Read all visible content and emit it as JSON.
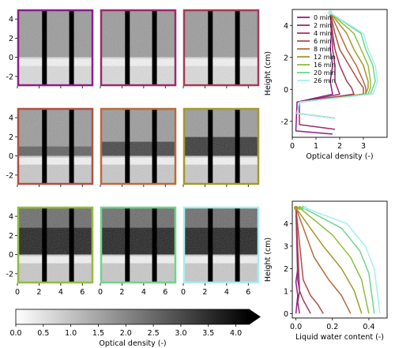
{
  "panel_axis": {
    "y_ticks": [
      "4",
      "2",
      "0",
      "-2"
    ],
    "x_ticks": [
      "0",
      "2",
      "4",
      "6"
    ]
  },
  "panels": [
    {
      "frame_color": "#8b1e8b",
      "state": "dry"
    },
    {
      "frame_color": "#9b2a6a",
      "state": "dry"
    },
    {
      "frame_color": "#a33b55",
      "state": "dry"
    },
    {
      "frame_color": "#b04f45",
      "state": "wet1"
    },
    {
      "frame_color": "#b86a3a",
      "state": "wet2"
    },
    {
      "frame_color": "#a39a2a",
      "state": "wet3"
    },
    {
      "frame_color": "#8fbf3a",
      "state": "wet4"
    },
    {
      "frame_color": "#6fd58a",
      "state": "wet5"
    },
    {
      "frame_color": "#a6eef0",
      "state": "wet5"
    }
  ],
  "colorbar": {
    "ticks": [
      "0.0",
      "0.5",
      "1.0",
      "1.5",
      "2.0",
      "2.5",
      "3.0",
      "3.5",
      "4.0"
    ],
    "label": "Optical density (-)",
    "range": [
      0,
      4.25
    ]
  },
  "chart_data": [
    {
      "type": "line",
      "ylabel": "Height (cm)",
      "xlabel": "Optical density (-)",
      "xlim": [
        0,
        4.0
      ],
      "ylim": [
        -3.0,
        5.0
      ],
      "x_ticks": [
        0,
        1,
        2,
        3
      ],
      "y_ticks": [
        -2,
        0,
        2,
        4
      ],
      "legend_position": "top-left",
      "series": [
        {
          "name": "0 min",
          "color": "#8b1e8b",
          "x": [
            1.6,
            1.65,
            1.6,
            1.7,
            1.6,
            1.65,
            1.7,
            0.2,
            0.15,
            1.7
          ],
          "y": [
            4.8,
            3.5,
            2.5,
            1.5,
            0.5,
            0.1,
            -0.3,
            -0.8,
            -2.6,
            -2.8
          ]
        },
        {
          "name": "2 min",
          "color": "#9b2a6a",
          "x": [
            1.6,
            1.7,
            1.7,
            1.8,
            1.8,
            1.9,
            2.0,
            0.3,
            0.3,
            1.8
          ],
          "y": [
            4.8,
            3.5,
            2.5,
            1.5,
            0.5,
            0.1,
            -0.3,
            -0.8,
            -2.2,
            -2.5
          ]
        },
        {
          "name": "4 min",
          "color": "#a33b55",
          "x": [
            1.6,
            1.7,
            1.8,
            2.0,
            2.3,
            2.5,
            2.6,
            0.3,
            0.2,
            1.8
          ],
          "y": [
            4.8,
            3.5,
            2.5,
            1.5,
            0.5,
            0.1,
            -0.3,
            -0.8,
            -1.5,
            -1.8
          ]
        },
        {
          "name": "6 min",
          "color": "#b04f45",
          "x": [
            1.6,
            1.8,
            2.0,
            2.4,
            2.8,
            3.0,
            3.0,
            0.3,
            0.2,
            1.8
          ],
          "y": [
            4.8,
            3.5,
            2.5,
            1.5,
            0.5,
            0.1,
            -0.3,
            -0.8,
            -1.5,
            -1.8
          ]
        },
        {
          "name": "8 min",
          "color": "#b86a3a",
          "x": [
            1.6,
            2.0,
            2.3,
            2.7,
            3.0,
            3.1,
            3.1,
            0.3,
            0.2,
            1.8
          ],
          "y": [
            4.8,
            3.5,
            2.5,
            1.5,
            0.5,
            0.1,
            -0.3,
            -0.8,
            -1.5,
            -1.8
          ]
        },
        {
          "name": "12 min",
          "color": "#a39a2a",
          "x": [
            1.6,
            2.3,
            2.6,
            3.0,
            3.2,
            3.2,
            3.1,
            0.3,
            0.2,
            1.8
          ],
          "y": [
            4.8,
            3.5,
            2.5,
            1.5,
            0.5,
            0.1,
            -0.3,
            -0.8,
            -1.5,
            -1.8
          ]
        },
        {
          "name": "16 min",
          "color": "#8fbf3a",
          "x": [
            1.6,
            2.6,
            2.9,
            3.2,
            3.3,
            3.3,
            3.2,
            0.3,
            0.2,
            1.8
          ],
          "y": [
            4.8,
            3.5,
            2.5,
            1.5,
            0.5,
            0.1,
            -0.3,
            -0.8,
            -1.5,
            -1.8
          ]
        },
        {
          "name": "20 min",
          "color": "#6fd58a",
          "x": [
            1.6,
            2.9,
            3.1,
            3.4,
            3.5,
            3.4,
            3.3,
            0.3,
            0.2,
            1.8
          ],
          "y": [
            4.8,
            3.5,
            2.5,
            1.5,
            0.5,
            0.1,
            -0.3,
            -0.8,
            -1.5,
            -1.8
          ]
        },
        {
          "name": "26 min",
          "color": "#a6eef0",
          "x": [
            1.6,
            3.0,
            3.2,
            3.5,
            3.6,
            3.5,
            3.4,
            0.3,
            0.2,
            1.8
          ],
          "y": [
            4.8,
            3.5,
            2.5,
            1.5,
            0.5,
            0.1,
            -0.3,
            -0.8,
            -1.5,
            -1.8
          ]
        }
      ]
    },
    {
      "type": "line",
      "ylabel": "Height (cm)",
      "xlabel": "Liquid water content (-)",
      "xlim": [
        -0.02,
        0.5
      ],
      "ylim": [
        -0.2,
        5.0
      ],
      "x_ticks": [
        0.0,
        0.2,
        0.4
      ],
      "y_ticks": [
        0,
        1,
        2,
        3,
        4
      ],
      "series": [
        {
          "color": "#8b1e8b",
          "x": [
            0.0,
            0.01,
            0.0,
            0.01,
            0.0
          ],
          "y": [
            4.7,
            2.0,
            1.4,
            0.8,
            0.0
          ]
        },
        {
          "color": "#9b2a6a",
          "x": [
            0.0,
            0.01,
            0.02,
            0.01,
            0.02
          ],
          "y": [
            4.7,
            1.5,
            1.0,
            0.5,
            0.0
          ]
        },
        {
          "color": "#a33b55",
          "x": [
            0.0,
            0.02,
            0.04,
            0.06,
            0.08
          ],
          "y": [
            4.7,
            1.0,
            0.6,
            0.3,
            0.0
          ]
        },
        {
          "color": "#b04f45",
          "x": [
            0.0,
            0.04,
            0.08,
            0.12,
            0.15
          ],
          "y": [
            4.7,
            1.5,
            0.8,
            0.4,
            0.0
          ]
        },
        {
          "color": "#b86a3a",
          "x": [
            0.0,
            0.1,
            0.18,
            0.25,
            0.3
          ],
          "y": [
            4.7,
            2.5,
            1.5,
            0.8,
            0.0
          ]
        },
        {
          "color": "#a39a2a",
          "x": [
            0.0,
            0.15,
            0.25,
            0.32,
            0.36
          ],
          "y": [
            4.7,
            3.0,
            2.0,
            1.0,
            0.0
          ]
        },
        {
          "color": "#8fbf3a",
          "x": [
            0.02,
            0.2,
            0.3,
            0.36,
            0.4
          ],
          "y": [
            4.7,
            3.5,
            2.5,
            1.5,
            0.0
          ]
        },
        {
          "color": "#6fd58a",
          "x": [
            0.04,
            0.25,
            0.35,
            0.4,
            0.43
          ],
          "y": [
            4.7,
            3.8,
            2.8,
            1.8,
            0.0
          ]
        },
        {
          "color": "#a6eef0",
          "x": [
            0.05,
            0.28,
            0.38,
            0.43,
            0.46
          ],
          "y": [
            4.7,
            4.0,
            3.0,
            2.0,
            0.0
          ]
        }
      ]
    }
  ]
}
